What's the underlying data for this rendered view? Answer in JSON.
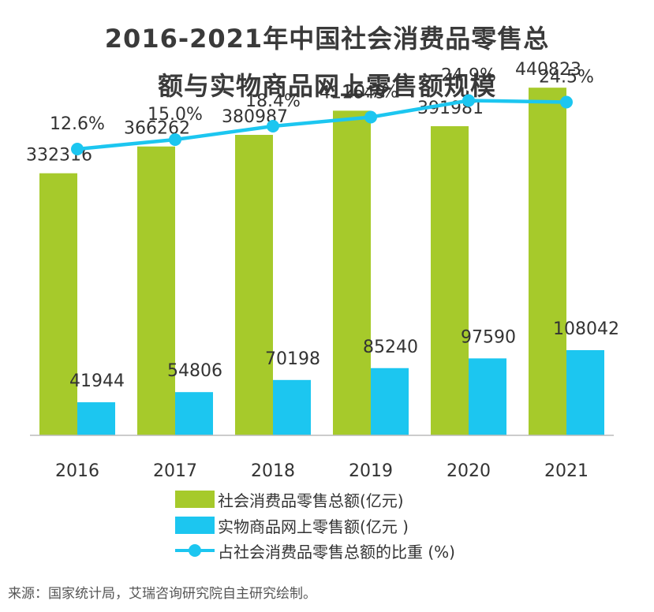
{
  "colors": {
    "green": "#a6ca2b",
    "blue": "#1cc6f0",
    "axis": "#bbbbbb",
    "label": "#333333"
  },
  "chart_data": {
    "type": "bar",
    "title_lines": [
      "2016-2021年中国社会消费品零售总",
      "额与实物商品网上零售额规模"
    ],
    "categories": [
      "2016",
      "2017",
      "2018",
      "2019",
      "2020",
      "2021"
    ],
    "series": [
      {
        "name": "社会消费品零售总额(亿元)",
        "type": "bar",
        "color": "#a6ca2b",
        "values": [
          332316,
          366262,
          380987,
          411649,
          391981,
          440823
        ],
        "labels": [
          "332316",
          "366262",
          "380987",
          "411649",
          "391981",
          "440823"
        ]
      },
      {
        "name": "实物商品网上零售额(亿元 )",
        "type": "bar",
        "color": "#1cc6f0",
        "values": [
          41944,
          54806,
          70198,
          85240,
          97590,
          108042
        ],
        "labels": [
          "41944",
          "54806",
          "70198",
          "85240",
          "97590",
          "108042"
        ]
      },
      {
        "name": "占社会消费品零售总额的比重 (%)",
        "type": "line",
        "color": "#1cc6f0",
        "values": [
          12.6,
          15.0,
          18.4,
          20.7,
          24.9,
          24.5
        ],
        "labels": [
          "12.6%",
          "15.0%",
          "18.4%",
          "20.7%",
          "24.9%",
          "24.5%"
        ]
      }
    ],
    "ylim": [
      0,
      500000
    ],
    "y2lim": [
      -60,
      40
    ],
    "grid": false,
    "legend": "bottom"
  },
  "source_note": "来源：国家统计局，艾瑞咨询研究院自主研究绘制。"
}
